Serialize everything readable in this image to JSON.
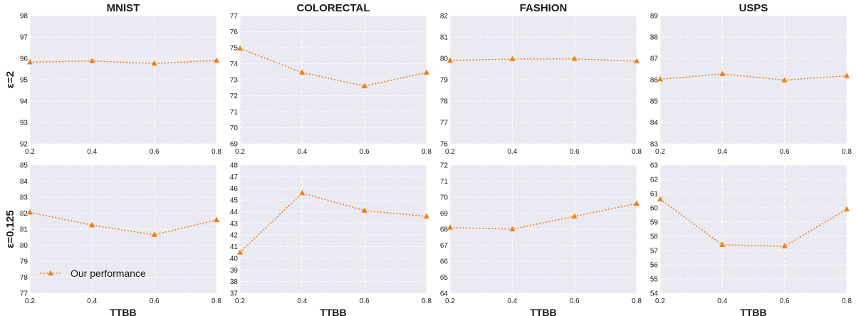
{
  "colors": {
    "series": "#f07f16",
    "panel_bg": "#eaeaf2",
    "grid": "#ffffff"
  },
  "rows": [
    {
      "label": "ε=2"
    },
    {
      "label": "ε=0.125"
    }
  ],
  "legend": {
    "label": "Our performance",
    "placement": "lower-left",
    "panel": "MNIST ε=0.125"
  },
  "chart_data": [
    {
      "type": "line",
      "title": "MNIST",
      "row_label": "ε=2",
      "xlabel": "",
      "x": [
        0.2,
        0.4,
        0.6,
        0.8
      ],
      "xticks": [
        "0.2",
        "0.4",
        "0.6",
        "0.8"
      ],
      "ylim": [
        92,
        98
      ],
      "yticks": [
        92,
        93,
        94,
        95,
        96,
        97,
        98
      ],
      "series": [
        {
          "name": "Our performance",
          "values": [
            95.82,
            95.88,
            95.76,
            95.9
          ]
        }
      ]
    },
    {
      "type": "line",
      "title": "COLORECTAL",
      "row_label": "ε=2",
      "xlabel": "",
      "x": [
        0.2,
        0.4,
        0.6,
        0.8
      ],
      "xticks": [
        "0.2",
        "0.4",
        "0.6",
        "0.8"
      ],
      "ylim": [
        69,
        77
      ],
      "yticks": [
        69,
        70,
        71,
        72,
        73,
        74,
        75,
        76,
        77
      ],
      "series": [
        {
          "name": "Our performance",
          "values": [
            74.95,
            73.45,
            72.6,
            73.45
          ]
        }
      ]
    },
    {
      "type": "line",
      "title": "FASHION",
      "row_label": "ε=2",
      "xlabel": "",
      "x": [
        0.2,
        0.4,
        0.6,
        0.8
      ],
      "xticks": [
        "0.2",
        "0.4",
        "0.6",
        "0.8"
      ],
      "ylim": [
        76,
        82
      ],
      "yticks": [
        76,
        77,
        78,
        79,
        80,
        81,
        82
      ],
      "series": [
        {
          "name": "Our performance",
          "values": [
            79.9,
            79.97,
            79.98,
            79.87
          ]
        }
      ]
    },
    {
      "type": "line",
      "title": "USPS",
      "row_label": "ε=2",
      "xlabel": "",
      "x": [
        0.2,
        0.4,
        0.6,
        0.8
      ],
      "xticks": [
        "0.2",
        "0.4",
        "0.6",
        "0.8"
      ],
      "ylim": [
        83,
        89
      ],
      "yticks": [
        83,
        84,
        85,
        86,
        87,
        88,
        89
      ],
      "series": [
        {
          "name": "Our performance",
          "values": [
            86.02,
            86.27,
            85.98,
            86.18
          ]
        }
      ]
    },
    {
      "type": "line",
      "title": "",
      "row_label": "ε=0.125",
      "xlabel": "TTBB",
      "x": [
        0.2,
        0.4,
        0.6,
        0.8
      ],
      "xticks": [
        "0.2",
        "0.4",
        "0.6",
        "0.8"
      ],
      "ylim": [
        77,
        85
      ],
      "yticks": [
        77,
        78,
        79,
        80,
        81,
        82,
        83,
        84,
        85
      ],
      "series": [
        {
          "name": "Our performance",
          "values": [
            82.05,
            81.25,
            80.65,
            81.58
          ]
        }
      ]
    },
    {
      "type": "line",
      "title": "",
      "row_label": "ε=0.125",
      "xlabel": "TTBB",
      "x": [
        0.2,
        0.4,
        0.6,
        0.8
      ],
      "xticks": [
        "0.2",
        "0.4",
        "0.6",
        "0.8"
      ],
      "ylim": [
        37,
        48
      ],
      "yticks": [
        37,
        38,
        39,
        40,
        41,
        42,
        43,
        44,
        45,
        46,
        47,
        48
      ],
      "series": [
        {
          "name": "Our performance",
          "values": [
            40.5,
            45.6,
            44.1,
            43.6
          ]
        }
      ]
    },
    {
      "type": "line",
      "title": "",
      "row_label": "ε=0.125",
      "xlabel": "TTBB",
      "x": [
        0.2,
        0.4,
        0.6,
        0.8
      ],
      "xticks": [
        "0.2",
        "0.4",
        "0.6",
        "0.8"
      ],
      "ylim": [
        64,
        72
      ],
      "yticks": [
        64,
        65,
        66,
        67,
        68,
        69,
        70,
        71,
        72
      ],
      "series": [
        {
          "name": "Our performance",
          "values": [
            68.1,
            68.0,
            68.8,
            69.6
          ]
        }
      ]
    },
    {
      "type": "line",
      "title": "",
      "row_label": "ε=0.125",
      "xlabel": "TTBB",
      "x": [
        0.2,
        0.4,
        0.6,
        0.8
      ],
      "xticks": [
        "0.2",
        "0.4",
        "0.6",
        "0.8"
      ],
      "ylim": [
        54,
        63
      ],
      "yticks": [
        54,
        55,
        56,
        57,
        58,
        59,
        60,
        61,
        62,
        63
      ],
      "series": [
        {
          "name": "Our performance",
          "values": [
            60.6,
            57.4,
            57.3,
            59.9
          ]
        }
      ]
    }
  ]
}
